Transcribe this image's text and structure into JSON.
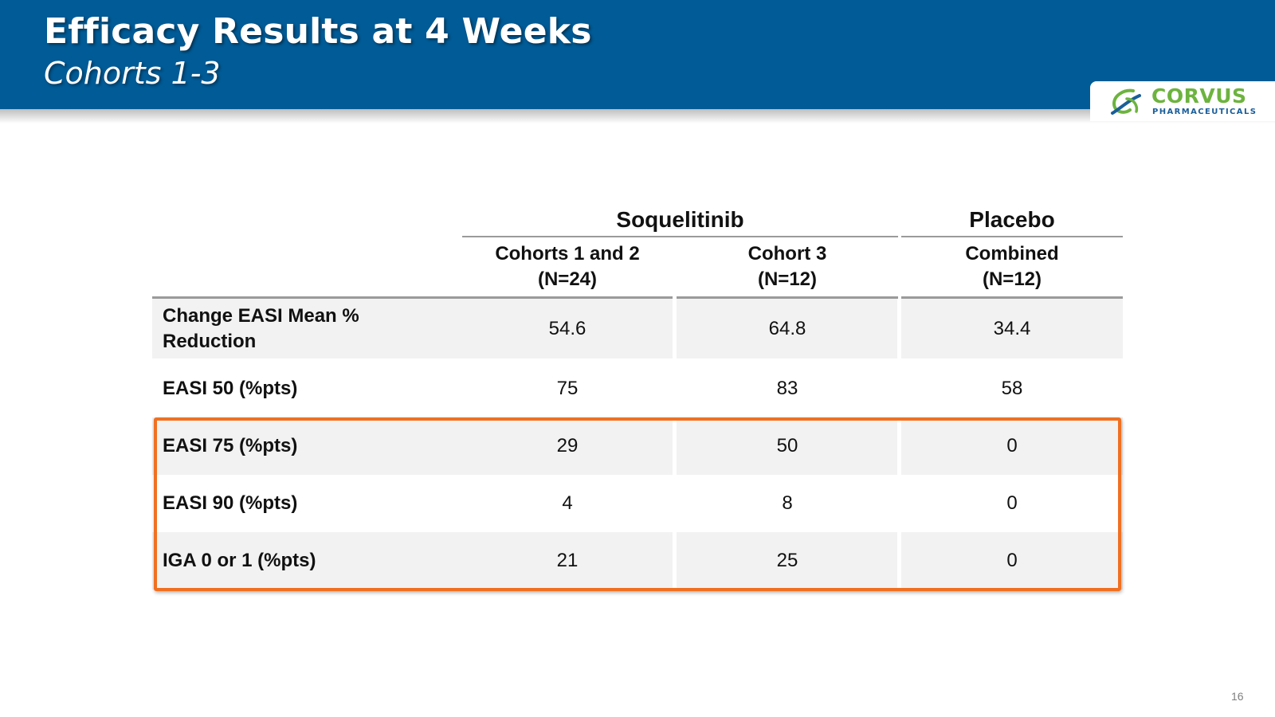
{
  "header": {
    "title": "Efficacy Results at 4 Weeks",
    "subtitle": "Cohorts 1-3"
  },
  "logo": {
    "name": "CORVUS",
    "sub": "PHARMACEUTICALS",
    "mark_icon": "corvus-swirl-icon",
    "colors": {
      "green": "#6db33f",
      "blue": "#1a5e9a"
    }
  },
  "table": {
    "groups": [
      "Soquelitinib",
      "Placebo"
    ],
    "columns": [
      {
        "line1": "Cohorts 1 and 2",
        "line2": "(N=24)"
      },
      {
        "line1": "Cohort 3",
        "line2": "(N=12)"
      },
      {
        "line1": "Combined",
        "line2": "(N=12)"
      }
    ],
    "rows": [
      {
        "label": "Change EASI Mean % Reduction",
        "values": [
          "54.6",
          "64.8",
          "34.4"
        ]
      },
      {
        "label": "EASI 50 (%pts)",
        "values": [
          "75",
          "83",
          "58"
        ]
      },
      {
        "label": "EASI 75 (%pts)",
        "values": [
          "29",
          "50",
          "0"
        ]
      },
      {
        "label": "EASI 90 (%pts)",
        "values": [
          "4",
          "8",
          "0"
        ]
      },
      {
        "label": "IGA 0 or 1 (%pts)",
        "values": [
          "21",
          "25",
          "0"
        ]
      }
    ]
  },
  "colors": {
    "banner": "#005b96",
    "highlight": "#f07022",
    "row_shade": "#f2f2f2"
  },
  "page_number": "16"
}
